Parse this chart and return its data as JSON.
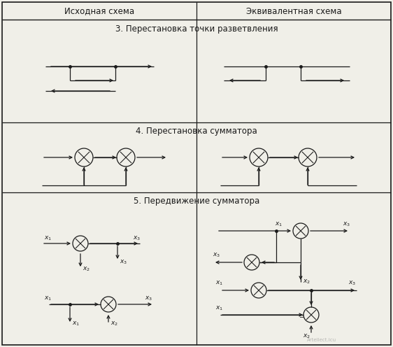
{
  "title_row": [
    "Исходная схема",
    "Эквивалентная схема"
  ],
  "section3_title": "3. Перестановка точки разветвления",
  "section4_title": "4. Перестановка сумматора",
  "section5_title": "5. Передвижение сумматора",
  "bg_color": "#f0efe8",
  "line_color": "#1a1a1a",
  "text_color": "#1a1a1a"
}
